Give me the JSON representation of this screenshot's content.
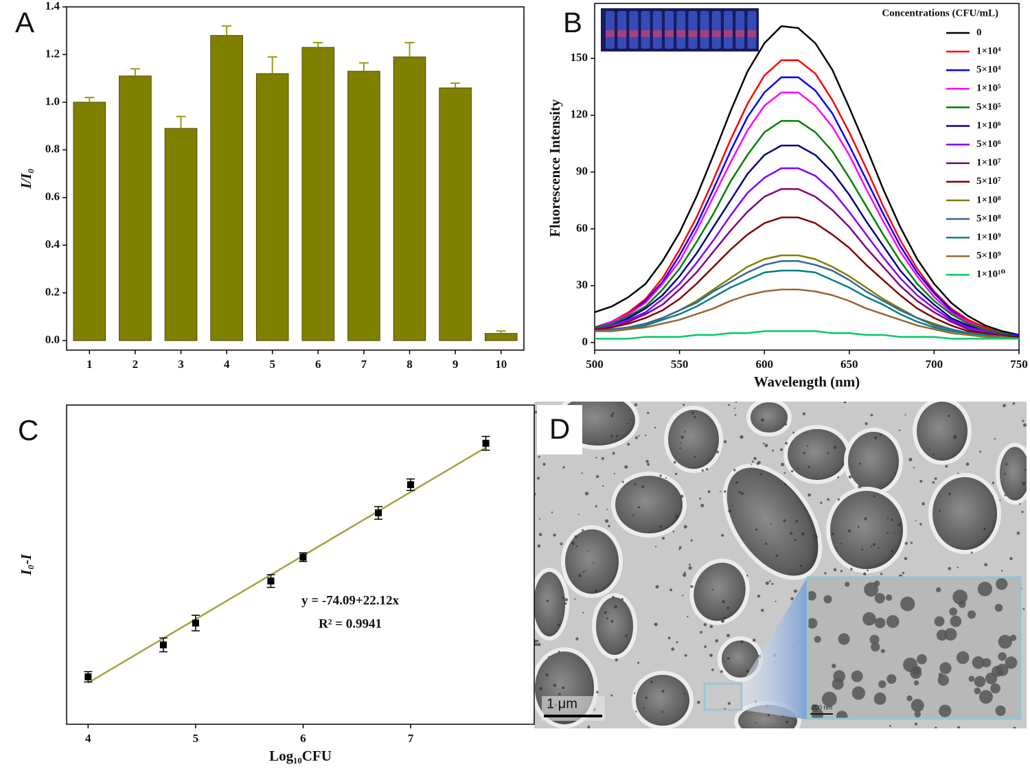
{
  "chart_data": [
    {
      "type": "bar",
      "label": "A",
      "y_label": "I/I₀",
      "categories": [
        "1",
        "2",
        "3",
        "4",
        "5",
        "6",
        "7",
        "8",
        "9",
        "10"
      ],
      "values": [
        1.0,
        1.11,
        0.89,
        1.28,
        1.12,
        1.23,
        1.13,
        1.19,
        1.06,
        0.03
      ],
      "errors": [
        0.02,
        0.03,
        0.05,
        0.04,
        0.07,
        0.02,
        0.035,
        0.06,
        0.02,
        0.01
      ],
      "color": "#808000",
      "ylim": [
        -0.04,
        1.4
      ],
      "yticks": [
        {
          "value": 0,
          "label": "0.0"
        },
        0.2,
        0.4,
        0.6,
        0.8,
        {
          "value": 1,
          "label": "1.0"
        },
        1.2,
        1.4
      ]
    },
    {
      "type": "line",
      "label": "B",
      "x_label": "Wavelength (nm)",
      "y_label": "Fluorescence Intensity",
      "legend_title": "Concentrations (CFU/mL)",
      "legend": "upper right",
      "x": [
        500,
        510,
        520,
        530,
        540,
        550,
        560,
        570,
        580,
        590,
        600,
        610,
        620,
        630,
        640,
        650,
        660,
        670,
        680,
        690,
        700,
        710,
        720,
        730,
        740,
        750
      ],
      "series": [
        {
          "name": "0",
          "color": "#000000",
          "values": [
            16,
            19,
            24,
            31,
            43,
            58,
            77,
            99,
            122,
            143,
            158,
            167,
            166,
            158,
            144,
            124,
            103,
            81,
            61,
            44,
            31,
            21,
            14,
            9,
            6,
            4
          ]
        },
        {
          "name": "1×10⁴",
          "color": "#ff0000",
          "values": [
            8,
            11,
            16,
            23,
            34,
            49,
            66,
            86,
            107,
            126,
            141,
            149,
            149,
            142,
            128,
            111,
            92,
            72,
            54,
            39,
            27,
            18,
            12,
            8,
            5,
            4
          ]
        },
        {
          "name": "5×10⁴",
          "color": "#0000ff",
          "values": [
            8,
            11,
            15,
            22,
            32,
            46,
            62,
            81,
            101,
            119,
            132,
            140,
            140,
            133,
            121,
            104,
            86,
            68,
            51,
            37,
            26,
            17,
            11,
            7,
            5,
            4
          ]
        },
        {
          "name": "1×10⁵",
          "color": "#ff00ff",
          "values": [
            8,
            11,
            15,
            21,
            31,
            43,
            59,
            77,
            95,
            112,
            125,
            132,
            132,
            125,
            114,
            99,
            81,
            64,
            48,
            35,
            24,
            16,
            11,
            7,
            5,
            3
          ]
        },
        {
          "name": "5×10⁵",
          "color": "#008000",
          "values": [
            8,
            10,
            14,
            19,
            28,
            39,
            53,
            68,
            85,
            99,
            111,
            117,
            117,
            111,
            101,
            87,
            72,
            57,
            43,
            31,
            22,
            15,
            10,
            7,
            5,
            3
          ]
        },
        {
          "name": "1×10⁶",
          "color": "#000080",
          "values": [
            7,
            9,
            13,
            18,
            25,
            35,
            47,
            61,
            75,
            89,
            99,
            104,
            104,
            99,
            90,
            78,
            64,
            51,
            38,
            28,
            20,
            13,
            9,
            6,
            4,
            3
          ]
        },
        {
          "name": "5×10⁶",
          "color": "#8000ff",
          "values": [
            7,
            9,
            12,
            16,
            23,
            31,
            42,
            54,
            67,
            79,
            87,
            92,
            92,
            88,
            80,
            69,
            57,
            45,
            34,
            25,
            18,
            12,
            8,
            6,
            4,
            3
          ]
        },
        {
          "name": "1×10⁷",
          "color": "#800080",
          "values": [
            7,
            8,
            11,
            15,
            20,
            28,
            37,
            48,
            59,
            69,
            77,
            81,
            81,
            77,
            70,
            61,
            50,
            40,
            30,
            22,
            16,
            11,
            7,
            5,
            4,
            3
          ]
        },
        {
          "name": "5×10⁷",
          "color": "#800000",
          "values": [
            6,
            8,
            10,
            13,
            17,
            23,
            31,
            40,
            49,
            57,
            63,
            66,
            66,
            63,
            57,
            50,
            41,
            33,
            25,
            18,
            13,
            9,
            6,
            5,
            3,
            3
          ]
        },
        {
          "name": "1×10⁸",
          "color": "#808000",
          "values": [
            6,
            7,
            8,
            10,
            13,
            17,
            22,
            28,
            34,
            40,
            44,
            46,
            46,
            44,
            40,
            35,
            29,
            23,
            18,
            13,
            10,
            7,
            5,
            4,
            3,
            2
          ]
        },
        {
          "name": "5×10⁸",
          "color": "#336699",
          "values": [
            6,
            7,
            8,
            10,
            13,
            17,
            21,
            27,
            32,
            37,
            41,
            43,
            43,
            41,
            38,
            33,
            27,
            22,
            17,
            13,
            9,
            7,
            5,
            4,
            3,
            2
          ]
        },
        {
          "name": "1×10⁹",
          "color": "#008080",
          "values": [
            6,
            6,
            7,
            9,
            12,
            15,
            19,
            24,
            29,
            33,
            37,
            38,
            38,
            37,
            33,
            29,
            24,
            20,
            15,
            11,
            8,
            6,
            5,
            4,
            3,
            2
          ]
        },
        {
          "name": "5×10⁹",
          "color": "#996633",
          "values": [
            6,
            6,
            7,
            8,
            10,
            12,
            15,
            18,
            22,
            25,
            27,
            28,
            28,
            27,
            25,
            22,
            18,
            15,
            12,
            9,
            7,
            5,
            4,
            3,
            3,
            2
          ]
        },
        {
          "name": "1×10¹⁰",
          "color": "#00cc66",
          "values": [
            2,
            2,
            2,
            3,
            3,
            3,
            4,
            4,
            5,
            5,
            6,
            6,
            6,
            6,
            5,
            5,
            4,
            4,
            3,
            3,
            3,
            2,
            2,
            2,
            2,
            2
          ]
        }
      ],
      "xlim": [
        500,
        750
      ],
      "xticks": [
        500,
        550,
        600,
        650,
        700,
        750
      ],
      "ylim": [
        -4,
        179
      ],
      "yticks": [
        0,
        30,
        60,
        90,
        120,
        150
      ]
    },
    {
      "type": "scatter",
      "label": "C",
      "x_label": "Log₁₀CFU",
      "y_label": "I₀-I",
      "x": [
        4,
        4.7,
        5,
        5.7,
        6,
        6.7,
        7,
        7.7
      ],
      "values": [
        16.5,
        27.6,
        35.2,
        49.8,
        58.1,
        73.5,
        83.3,
        97.7
      ],
      "errors": [
        1.8,
        2.4,
        2.7,
        2.2,
        1.5,
        2.2,
        2.0,
        2.4
      ],
      "color": "#000000",
      "fit": {
        "intercept": -74.09,
        "slope": 22.12,
        "color": "#a3a33a",
        "label": "y = -74.09+22.12x",
        "r2_label": "R² = 0.9941"
      },
      "xlim": [
        3.8,
        8.15
      ],
      "xticks": [
        4,
        5,
        6,
        7
      ],
      "ylim": [
        0,
        111
      ]
    }
  ],
  "panel_d": {
    "label": "D",
    "scale_bar": "1 μm",
    "inset_scale_bar": "200 nm"
  }
}
